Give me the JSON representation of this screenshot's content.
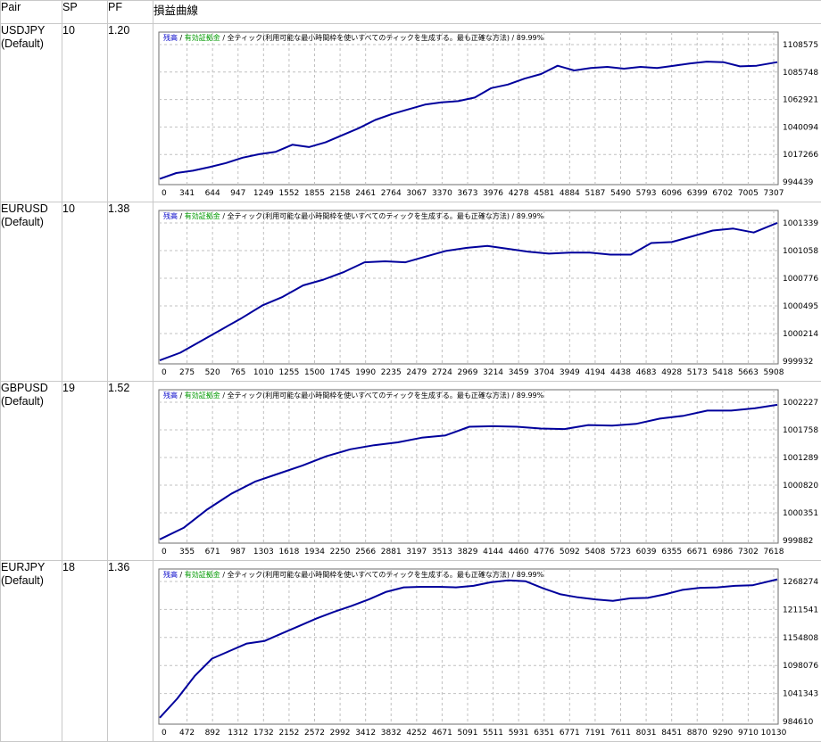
{
  "table": {
    "headers": {
      "pair": "Pair",
      "sp": "SP",
      "pf": "PF",
      "curve": "損益曲線"
    },
    "rows": [
      {
        "pair": "USDJPY",
        "sub": "(Default)",
        "sp": "10",
        "pf": "1.20"
      },
      {
        "pair": "EURUSD",
        "sub": "(Default)",
        "sp": "10",
        "pf": "1.38"
      },
      {
        "pair": "GBPUSD",
        "sub": "(Default)",
        "sp": "19",
        "pf": "1.52"
      },
      {
        "pair": "EURJPY",
        "sub": "(Default)",
        "sp": "18",
        "pf": "1.36"
      }
    ]
  },
  "colors": {
    "line": "#00009c",
    "balance_label": "#0000c8",
    "margin_label": "#009a00",
    "grid": "#c0c0c0"
  },
  "chart_data": [
    {
      "type": "line",
      "legend": {
        "balance": "残高",
        "sep1": " / ",
        "margin": "有効証拠金",
        "sep2": " / ",
        "model": "全ティック(利用可能な最小時間枠を使いすべてのティックを生成する。最も正確な方法) / 89.99%"
      },
      "x_ticks": [
        "0",
        "341",
        "644",
        "947",
        "1249",
        "1552",
        "1855",
        "2158",
        "2461",
        "2764",
        "3067",
        "3370",
        "3673",
        "3976",
        "4278",
        "4581",
        "4884",
        "5187",
        "5490",
        "5793",
        "6096",
        "6399",
        "6702",
        "7005",
        "7307"
      ],
      "y_ticks": [
        "1108575",
        "1085748",
        "1062921",
        "1040094",
        "1017266",
        "994439"
      ],
      "xlim": [
        0,
        7450
      ],
      "ylim": [
        994439,
        1120000
      ],
      "x": [
        0,
        200,
        400,
        600,
        800,
        1000,
        1200,
        1400,
        1600,
        1800,
        2000,
        2200,
        2400,
        2600,
        2800,
        3000,
        3200,
        3400,
        3600,
        3800,
        4000,
        4200,
        4400,
        4600,
        4800,
        5000,
        5200,
        5400,
        5600,
        5800,
        6000,
        6200,
        6400,
        6600,
        6800,
        7000,
        7200,
        7450
      ],
      "y": [
        997000,
        1002000,
        1004000,
        1007000,
        1010500,
        1015000,
        1018000,
        1020000,
        1026000,
        1024000,
        1028000,
        1034000,
        1040000,
        1047000,
        1052000,
        1056000,
        1060000,
        1062000,
        1063000,
        1066000,
        1074000,
        1077000,
        1082000,
        1086000,
        1093000,
        1089000,
        1091000,
        1092000,
        1090500,
        1092000,
        1091000,
        1093000,
        1095000,
        1096500,
        1096000,
        1092500,
        1093000,
        1096000
      ]
    },
    {
      "type": "line",
      "legend": {
        "balance": "残高",
        "sep1": " / ",
        "margin": "有効証拠金",
        "sep2": " / ",
        "model": "全ティック(利用可能な最小時間枠を使いすべてのティックを生成する。最も正確な方法) / 89.99%"
      },
      "x_ticks": [
        "0",
        "275",
        "520",
        "765",
        "1010",
        "1255",
        "1500",
        "1745",
        "1990",
        "2235",
        "2479",
        "2724",
        "2969",
        "3214",
        "3459",
        "3704",
        "3949",
        "4194",
        "4438",
        "4683",
        "4928",
        "5173",
        "5418",
        "5663",
        "5908"
      ],
      "y_ticks": [
        "1001339",
        "1001058",
        "1000776",
        "1000495",
        "1000214",
        "999932"
      ],
      "xlim": [
        0,
        6030
      ],
      "ylim": [
        999932,
        1001480
      ],
      "x": [
        0,
        200,
        400,
        600,
        800,
        1000,
        1200,
        1400,
        1600,
        1800,
        2000,
        2200,
        2400,
        2600,
        2800,
        3000,
        3200,
        3400,
        3600,
        3800,
        4000,
        4200,
        4400,
        4600,
        4800,
        5000,
        5200,
        5400,
        5600,
        5800,
        6030
      ],
      "y": [
        999940,
        1000020,
        1000140,
        1000260,
        1000380,
        1000510,
        1000600,
        1000720,
        1000780,
        1000860,
        1000960,
        1000970,
        1000960,
        1001020,
        1001080,
        1001110,
        1001130,
        1001100,
        1001070,
        1001050,
        1001060,
        1001060,
        1001040,
        1001040,
        1001160,
        1001170,
        1001230,
        1001290,
        1001310,
        1001270,
        1001370
      ]
    },
    {
      "type": "line",
      "legend": {
        "balance": "残高",
        "sep1": " / ",
        "margin": "有効証拠金",
        "sep2": " / ",
        "model": "全ティック(利用可能な最小時間枠を使いすべてのティックを生成する。最も正確な方法) / 89.99%"
      },
      "x_ticks": [
        "0",
        "355",
        "671",
        "987",
        "1303",
        "1618",
        "1934",
        "2250",
        "2566",
        "2881",
        "3197",
        "3513",
        "3829",
        "4144",
        "4460",
        "4776",
        "5092",
        "5408",
        "5723",
        "6039",
        "6355",
        "6671",
        "6986",
        "7302",
        "7618"
      ],
      "y_ticks": [
        "1002227",
        "1001758",
        "1001289",
        "1000820",
        "1000351",
        "999882"
      ],
      "xlim": [
        0,
        7780
      ],
      "ylim": [
        999882,
        1002460
      ],
      "x": [
        0,
        300,
        600,
        900,
        1200,
        1500,
        1800,
        2100,
        2400,
        2700,
        3000,
        3300,
        3600,
        3900,
        4200,
        4500,
        4800,
        5100,
        5400,
        5700,
        6000,
        6300,
        6600,
        6900,
        7200,
        7500,
        7780
      ],
      "y": [
        999900,
        1000100,
        1000420,
        1000690,
        1000900,
        1001040,
        1001180,
        1001340,
        1001460,
        1001530,
        1001580,
        1001660,
        1001700,
        1001850,
        1001860,
        1001850,
        1001820,
        1001810,
        1001880,
        1001870,
        1001900,
        1001990,
        1002040,
        1002130,
        1002130,
        1002170,
        1002230
      ]
    },
    {
      "type": "line",
      "legend": {
        "balance": "残高",
        "sep1": " / ",
        "margin": "有効証拠金",
        "sep2": " / ",
        "model": "全ティック(利用可能な最小時間枠を使いすべてのティックを生成する。最も正確な方法) / 89.99%"
      },
      "x_ticks": [
        "0",
        "472",
        "892",
        "1312",
        "1732",
        "2152",
        "2572",
        "2992",
        "3412",
        "3832",
        "4252",
        "4671",
        "5091",
        "5511",
        "5931",
        "6351",
        "6771",
        "7191",
        "7611",
        "8031",
        "8451",
        "8870",
        "9290",
        "9710",
        "10130"
      ],
      "y_ticks": [
        "1268274",
        "1211541",
        "1154808",
        "1098076",
        "1041343",
        "984610"
      ],
      "xlim": [
        0,
        10630
      ],
      "ylim": [
        984610,
        1285000
      ],
      "x": [
        0,
        300,
        600,
        900,
        1200,
        1500,
        1800,
        2100,
        2400,
        2700,
        3000,
        3300,
        3600,
        3900,
        4200,
        4500,
        4800,
        5100,
        5400,
        5700,
        6000,
        6300,
        6600,
        6900,
        7200,
        7500,
        7800,
        8100,
        8400,
        8700,
        9000,
        9300,
        9600,
        9900,
        10200,
        10630
      ],
      "y": [
        992000,
        1030000,
        1075000,
        1110000,
        1125000,
        1140000,
        1145000,
        1160000,
        1175000,
        1190000,
        1203000,
        1215000,
        1228000,
        1243000,
        1252000,
        1253000,
        1253000,
        1252000,
        1255000,
        1262000,
        1266000,
        1264000,
        1250000,
        1238000,
        1232000,
        1228000,
        1225000,
        1230000,
        1231000,
        1238000,
        1247000,
        1251000,
        1252000,
        1255000,
        1256000,
        1268000
      ]
    }
  ]
}
